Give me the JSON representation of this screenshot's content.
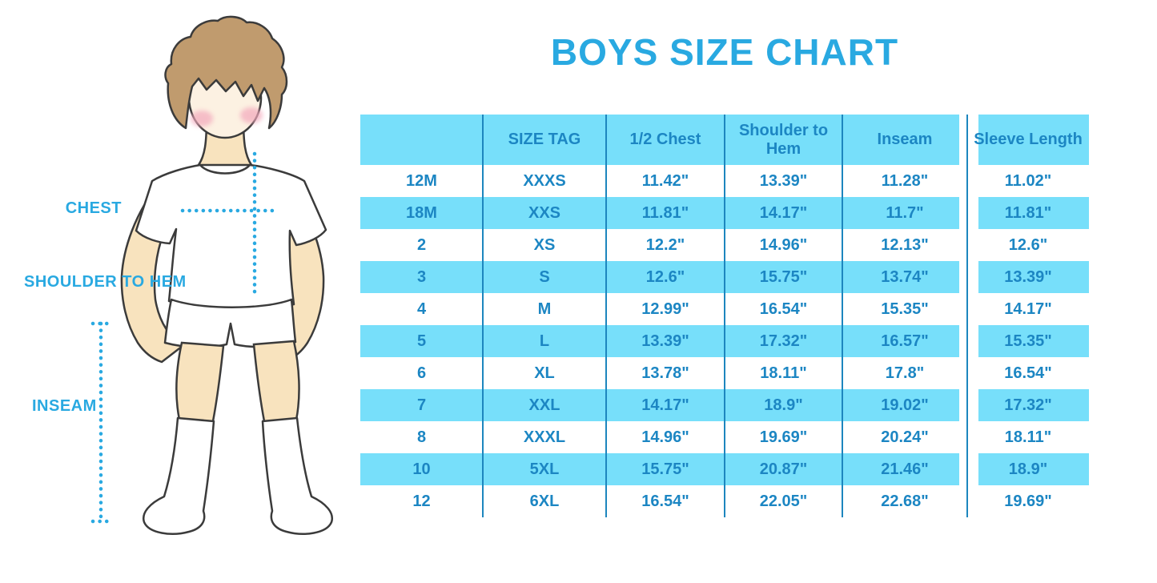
{
  "title": "BOYS SIZE CHART",
  "figure": {
    "description": "Illustration of a boy in a white t-shirt, white shorts and knee-high white socks with dotted measurement guides",
    "labels": {
      "chest": "CHEST",
      "shoulder_to_hem": "SHOULDER TO HEM",
      "inseam": "INSEAM"
    }
  },
  "colors": {
    "accent_blue": "#29A9E1",
    "table_stripe": "#77DFFA",
    "table_divider": "#1D86BE",
    "table_text": "#1C86C3",
    "hair": "#C09B6E",
    "skin": "#F8E3BE",
    "face": "#FCF1E2",
    "blush": "#F3A8BC"
  },
  "chart_data": {
    "type": "table",
    "title": "BOYS SIZE CHART",
    "columns": [
      "",
      "SIZE TAG",
      "1/2 Chest",
      "Shoulder to Hem",
      "Inseam",
      "Sleeve Length"
    ],
    "rows": [
      [
        "12M",
        "XXXS",
        "11.42\"",
        "13.39\"",
        "11.28\"",
        "11.02\""
      ],
      [
        "18M",
        "XXS",
        "11.81\"",
        "14.17\"",
        "11.7\"",
        "11.81\""
      ],
      [
        "2",
        "XS",
        "12.2\"",
        "14.96\"",
        "12.13\"",
        "12.6\""
      ],
      [
        "3",
        "S",
        "12.6\"",
        "15.75\"",
        "13.74\"",
        "13.39\""
      ],
      [
        "4",
        "M",
        "12.99\"",
        "16.54\"",
        "15.35\"",
        "14.17\""
      ],
      [
        "5",
        "L",
        "13.39\"",
        "17.32\"",
        "16.57\"",
        "15.35\""
      ],
      [
        "6",
        "XL",
        "13.78\"",
        "18.11\"",
        "17.8\"",
        "16.54\""
      ],
      [
        "7",
        "XXL",
        "14.17\"",
        "18.9\"",
        "19.02\"",
        "17.32\""
      ],
      [
        "8",
        "XXXL",
        "14.96\"",
        "19.69\"",
        "20.24\"",
        "18.11\""
      ],
      [
        "10",
        "5XL",
        "15.75\"",
        "20.87\"",
        "21.46\"",
        "18.9\""
      ],
      [
        "12",
        "6XL",
        "16.54\"",
        "22.05\"",
        "22.68\"",
        "19.69\""
      ]
    ],
    "layout": "header row and alternating data rows (18M, 3, 5, 7, 10) filled light blue; dark blue vertical column dividers; units in inches"
  }
}
